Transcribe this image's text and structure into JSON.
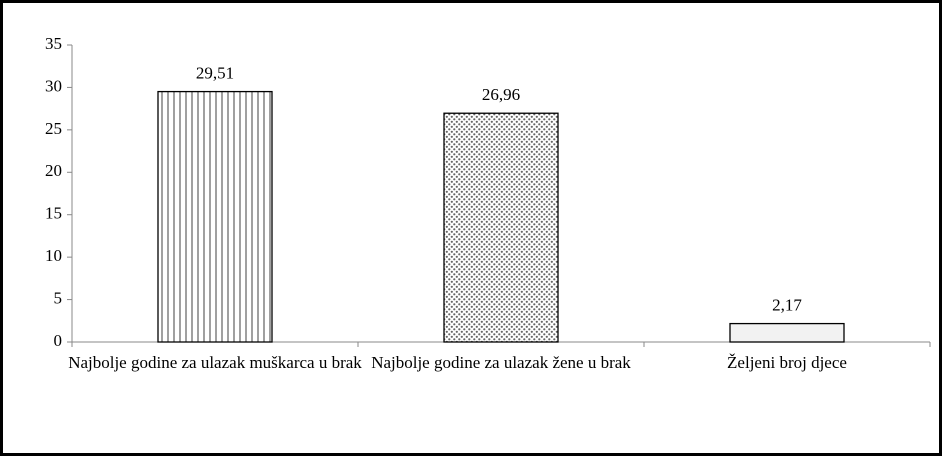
{
  "chart_data": {
    "type": "bar",
    "categories": [
      "Najbolje godine za ulazak muškarca u brak",
      "Najbolje godine za ulazak žene u brak",
      "Željeni broj djece"
    ],
    "values": [
      29.51,
      26.96,
      2.17
    ],
    "value_labels": [
      "29,51",
      "26,96",
      "2,17"
    ],
    "patterns": [
      "vertical-lines",
      "dots",
      "solid"
    ],
    "colors": [
      "#ffffff",
      "#ffffff",
      "#f2f2f2"
    ],
    "ylim": [
      0,
      35
    ],
    "yticks": [
      0,
      5,
      10,
      15,
      20,
      25,
      30,
      35
    ],
    "grid": false
  }
}
